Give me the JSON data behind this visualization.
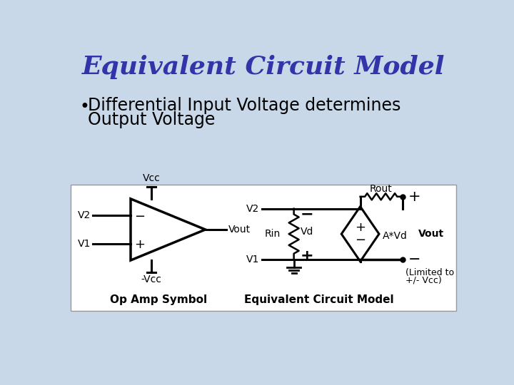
{
  "title": "Equivalent Circuit Model",
  "bullet_text1": "Differential Input Voltage determines",
  "bullet_text2": "Output Voltage",
  "title_color": "#3333AA",
  "bullet_color": "#000000",
  "background_color": "#C8D8E8",
  "box_background": "#FFFFFF",
  "box_edge": "#AAAAAA",
  "title_fontsize": 26,
  "bullet_fontsize": 17,
  "circuit_fontsize": 10,
  "label_fontsize": 11
}
